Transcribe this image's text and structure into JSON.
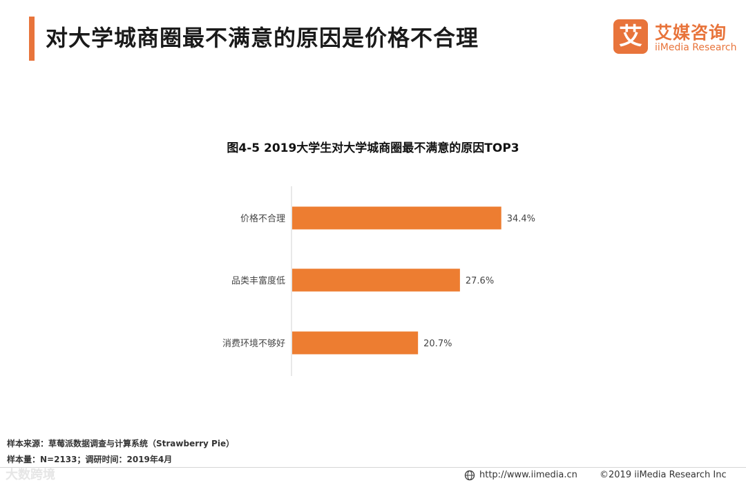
{
  "header": {
    "title": "对大学城商圈最不满意的原因是价格不合理",
    "accent_color": "#e8743b"
  },
  "brand": {
    "logo_glyph": "艾",
    "name_cn": "艾媒咨询",
    "name_en": "iiMedia Research"
  },
  "chart_data": {
    "type": "bar",
    "orientation": "horizontal",
    "title": "图4-5 2019大学生对大学城商圈最不满意的原因TOP3",
    "categories": [
      "价格不合理",
      "品类丰富度低",
      "消费环境不够好"
    ],
    "values": [
      34.4,
      27.6,
      20.7
    ],
    "value_labels": [
      "34.4%",
      "27.6%",
      "20.7%"
    ],
    "unit": "%",
    "bar_color": "#ed7d31",
    "xlim": [
      0,
      40
    ],
    "grid": false,
    "legend": "none"
  },
  "footer": {
    "source": "样本来源：草莓派数据调查与计算系统（Strawberry Pie）",
    "sample": "样本量：N=2133；调研时间：2019年4月",
    "watermark": "大数跨境",
    "url": "http://www.iimedia.cn",
    "copyright": "©2019  iiMedia Research  Inc"
  }
}
